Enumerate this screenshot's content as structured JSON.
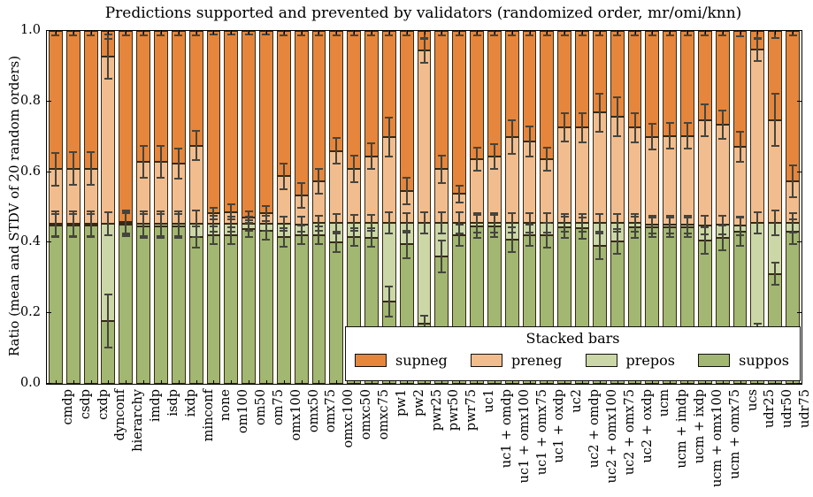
{
  "title": "Predictions supported and prevented by validators (randomized order, mr/omi/knn)",
  "ylabel": "Ratio (mean and STDV of 20 random orders)",
  "yticks": [
    "0.0",
    "0.2",
    "0.4",
    "0.6",
    "0.8",
    "1.0"
  ],
  "colors": {
    "supneg": "#e5863c",
    "preneg": "#f2bd8e",
    "prepos": "#cbd7a7",
    "suppos": "#a2b771",
    "edge": "#362a12",
    "errorbar": "#45453e"
  },
  "legend": {
    "title": "Stacked bars",
    "entries": [
      {
        "label": "supneg",
        "color": "#e5863c"
      },
      {
        "label": "preneg",
        "color": "#f2bd8e"
      },
      {
        "label": "prepos",
        "color": "#cbd7a7"
      },
      {
        "label": "suppos",
        "color": "#a2b771"
      }
    ]
  },
  "chart_data": {
    "type": "bar",
    "stacked": true,
    "ylim": [
      0,
      1
    ],
    "grid": false,
    "legend_position": "lower right inside",
    "series_order_bottom_to_top": [
      "suppos",
      "prepos",
      "preneg",
      "supneg"
    ],
    "note": "Values are cumulative boundaries: suppos_top, prepos_top, preneg_top; supneg fills to 1.0. *_err = STDV error bar half-length at that boundary.",
    "categories": [
      "cmdp",
      "csdp",
      "cxdp",
      "dynconf",
      "hierarchy",
      "imdp",
      "isdp",
      "ixdp",
      "minconf",
      "none",
      "om100",
      "om50",
      "om75",
      "omx100",
      "omx50",
      "omx75",
      "omxc100",
      "omxc50",
      "omxc75",
      "pw1",
      "pw2",
      "pwr25",
      "pwr50",
      "pwr75",
      "uc1",
      "uc1 + omdp",
      "uc1 + omx100",
      "uc1 + omx75",
      "uc1 + oxdp",
      "uc2",
      "uc2 + omdp",
      "uc2 + omx100",
      "uc2 + omx75",
      "uc2 + oxdp",
      "ucm",
      "ucm + imdp",
      "ucm + ixdp",
      "ucm + omx100",
      "ucm + omx75",
      "ucs",
      "udr25",
      "udr50",
      "udr75"
    ],
    "bars": [
      {
        "label": "cmdp",
        "suppos_top": 0.448,
        "suppos_err": 0.033,
        "prepos_top": 0.454,
        "prepos_err": 0.035,
        "preneg_top": 0.608,
        "preneg_err": 0.046,
        "supneg_top": 1.0,
        "supneg_err": 0.012
      },
      {
        "label": "csdp",
        "suppos_top": 0.448,
        "suppos_err": 0.033,
        "prepos_top": 0.454,
        "prepos_err": 0.035,
        "preneg_top": 0.61,
        "preneg_err": 0.047,
        "supneg_top": 1.0,
        "supneg_err": 0.012
      },
      {
        "label": "cxdp",
        "suppos_top": 0.448,
        "suppos_err": 0.033,
        "prepos_top": 0.454,
        "prepos_err": 0.035,
        "preneg_top": 0.61,
        "preneg_err": 0.047,
        "supneg_top": 1.0,
        "supneg_err": 0.012
      },
      {
        "label": "dynconf",
        "suppos_top": 0.178,
        "suppos_err": 0.075,
        "prepos_top": 0.454,
        "prepos_err": 0.032,
        "preneg_top": 0.928,
        "preneg_err": 0.063,
        "supneg_top": 1.0,
        "supneg_err": 0.022
      },
      {
        "label": "hierarchy",
        "suppos_top": 0.451,
        "suppos_err": 0.032,
        "prepos_top": 0.455,
        "prepos_err": 0.032,
        "preneg_top": 0.459,
        "preneg_err": 0.032,
        "supneg_top": 1.0,
        "supneg_err": 0.012
      },
      {
        "label": "imdp",
        "suppos_top": 0.447,
        "suppos_err": 0.034,
        "prepos_top": 0.454,
        "prepos_err": 0.035,
        "preneg_top": 0.628,
        "preneg_err": 0.045,
        "supneg_top": 1.0,
        "supneg_err": 0.012
      },
      {
        "label": "isdp",
        "suppos_top": 0.447,
        "suppos_err": 0.034,
        "prepos_top": 0.454,
        "prepos_err": 0.035,
        "preneg_top": 0.628,
        "preneg_err": 0.045,
        "supneg_top": 1.0,
        "supneg_err": 0.012
      },
      {
        "label": "ixdp",
        "suppos_top": 0.447,
        "suppos_err": 0.034,
        "prepos_top": 0.454,
        "prepos_err": 0.035,
        "preneg_top": 0.624,
        "preneg_err": 0.042,
        "supneg_top": 1.0,
        "supneg_err": 0.012
      },
      {
        "label": "minconf",
        "suppos_top": 0.416,
        "suppos_err": 0.03,
        "prepos_top": 0.453,
        "prepos_err": 0.037,
        "preneg_top": 0.675,
        "preneg_err": 0.042,
        "supneg_top": 1.0,
        "supneg_err": 0.012
      },
      {
        "label": "none",
        "suppos_top": 0.42,
        "suppos_err": 0.025,
        "prepos_top": 0.454,
        "prepos_err": 0.022,
        "preneg_top": 0.483,
        "preneg_err": 0.016,
        "supneg_top": 1.0,
        "supneg_err": 0.01
      },
      {
        "label": "om100",
        "suppos_top": 0.42,
        "suppos_err": 0.023,
        "prepos_top": 0.453,
        "prepos_err": 0.021,
        "preneg_top": 0.487,
        "preneg_err": 0.022,
        "supneg_top": 1.0,
        "supneg_err": 0.01
      },
      {
        "label": "om50",
        "suppos_top": 0.439,
        "suppos_err": 0.024,
        "prepos_top": 0.454,
        "prepos_err": 0.02,
        "preneg_top": 0.472,
        "preneg_err": 0.017,
        "supneg_top": 1.0,
        "supneg_err": 0.01
      },
      {
        "label": "om75",
        "suppos_top": 0.434,
        "suppos_err": 0.026,
        "prepos_top": 0.454,
        "prepos_err": 0.021,
        "preneg_top": 0.483,
        "preneg_err": 0.021,
        "supneg_top": 1.0,
        "supneg_err": 0.01
      },
      {
        "label": "omx100",
        "suppos_top": 0.415,
        "suppos_err": 0.027,
        "prepos_top": 0.454,
        "prepos_err": 0.02,
        "preneg_top": 0.588,
        "preneg_err": 0.037,
        "supneg_top": 1.0,
        "supneg_err": 0.012
      },
      {
        "label": "omx50",
        "suppos_top": 0.422,
        "suppos_err": 0.026,
        "prepos_top": 0.452,
        "prepos_err": 0.022,
        "preneg_top": 0.535,
        "preneg_err": 0.035,
        "supneg_top": 1.0,
        "supneg_err": 0.012
      },
      {
        "label": "omx75",
        "suppos_top": 0.422,
        "suppos_err": 0.025,
        "prepos_top": 0.455,
        "prepos_err": 0.022,
        "preneg_top": 0.574,
        "preneg_err": 0.036,
        "supneg_top": 1.0,
        "supneg_err": 0.012
      },
      {
        "label": "omxc100",
        "suppos_top": 0.4,
        "suppos_err": 0.027,
        "prepos_top": 0.457,
        "prepos_err": 0.025,
        "preneg_top": 0.66,
        "preneg_err": 0.037,
        "supneg_top": 1.0,
        "supneg_err": 0.012
      },
      {
        "label": "omxc50",
        "suppos_top": 0.416,
        "suppos_err": 0.026,
        "prepos_top": 0.456,
        "prepos_err": 0.022,
        "preneg_top": 0.609,
        "preneg_err": 0.037,
        "supneg_top": 1.0,
        "supneg_err": 0.012
      },
      {
        "label": "omxc75",
        "suppos_top": 0.414,
        "suppos_err": 0.026,
        "prepos_top": 0.456,
        "prepos_err": 0.022,
        "preneg_top": 0.645,
        "preneg_err": 0.036,
        "supneg_top": 1.0,
        "supneg_err": 0.012
      },
      {
        "label": "pw1",
        "suppos_top": 0.233,
        "suppos_err": 0.043,
        "prepos_top": 0.456,
        "prepos_err": 0.03,
        "preneg_top": 0.7,
        "preneg_err": 0.055,
        "supneg_top": 1.0,
        "supneg_err": 0.012
      },
      {
        "label": "pw2",
        "suppos_top": 0.395,
        "suppos_err": 0.038,
        "prepos_top": 0.456,
        "prepos_err": 0.027,
        "preneg_top": 0.546,
        "preneg_err": 0.038,
        "supneg_top": 1.0,
        "supneg_err": 0.012
      },
      {
        "label": "pwr25",
        "suppos_top": 0.17,
        "suppos_err": 0.022,
        "prepos_top": 0.456,
        "prepos_err": 0.03,
        "preneg_top": 0.945,
        "preneg_err": 0.034,
        "supneg_top": 1.0,
        "supneg_err": 0.022
      },
      {
        "label": "pwr50",
        "suppos_top": 0.36,
        "suppos_err": 0.045,
        "prepos_top": 0.456,
        "prepos_err": 0.031,
        "preneg_top": 0.608,
        "preneg_err": 0.039,
        "supneg_top": 1.0,
        "supneg_err": 0.012
      },
      {
        "label": "pwr75",
        "suppos_top": 0.42,
        "suppos_err": 0.03,
        "prepos_top": 0.456,
        "prepos_err": 0.029,
        "preneg_top": 0.538,
        "preneg_err": 0.023,
        "supneg_top": 1.0,
        "supneg_err": 0.012
      },
      {
        "label": "uc1",
        "suppos_top": 0.446,
        "suppos_err": 0.032,
        "prepos_top": 0.456,
        "prepos_err": 0.028,
        "preneg_top": 0.637,
        "preneg_err": 0.033,
        "supneg_top": 1.0,
        "supneg_err": 0.012
      },
      {
        "label": "uc1 + omdp",
        "suppos_top": 0.447,
        "suppos_err": 0.032,
        "prepos_top": 0.456,
        "prepos_err": 0.028,
        "preneg_top": 0.643,
        "preneg_err": 0.035,
        "supneg_top": 1.0,
        "supneg_err": 0.012
      },
      {
        "label": "uc1 + omx100",
        "suppos_top": 0.408,
        "suppos_err": 0.035,
        "prepos_top": 0.456,
        "prepos_err": 0.028,
        "preneg_top": 0.699,
        "preneg_err": 0.047,
        "supneg_top": 1.0,
        "supneg_err": 0.012
      },
      {
        "label": "uc1 + omx75",
        "suppos_top": 0.42,
        "suppos_err": 0.03,
        "prepos_top": 0.456,
        "prepos_err": 0.028,
        "preneg_top": 0.687,
        "preneg_err": 0.043,
        "supneg_top": 1.0,
        "supneg_err": 0.012
      },
      {
        "label": "uc1 + oxdp",
        "suppos_top": 0.42,
        "suppos_err": 0.035,
        "prepos_top": 0.456,
        "prepos_err": 0.028,
        "preneg_top": 0.637,
        "preneg_err": 0.033,
        "supneg_top": 1.0,
        "supneg_err": 0.012
      },
      {
        "label": "uc2",
        "suppos_top": 0.443,
        "suppos_err": 0.03,
        "prepos_top": 0.456,
        "prepos_err": 0.026,
        "preneg_top": 0.727,
        "preneg_err": 0.04,
        "supneg_top": 1.0,
        "supneg_err": 0.012
      },
      {
        "label": "uc2 + omdp",
        "suppos_top": 0.44,
        "suppos_err": 0.03,
        "prepos_top": 0.456,
        "prepos_err": 0.026,
        "preneg_top": 0.726,
        "preneg_err": 0.042,
        "supneg_top": 1.0,
        "supneg_err": 0.012
      },
      {
        "label": "uc2 + omx100",
        "suppos_top": 0.39,
        "suppos_err": 0.037,
        "prepos_top": 0.456,
        "prepos_err": 0.026,
        "preneg_top": 0.769,
        "preneg_err": 0.054,
        "supneg_top": 1.0,
        "supneg_err": 0.012
      },
      {
        "label": "uc2 + omx75",
        "suppos_top": 0.403,
        "suppos_err": 0.035,
        "prepos_top": 0.456,
        "prepos_err": 0.026,
        "preneg_top": 0.758,
        "preneg_err": 0.055,
        "supneg_top": 1.0,
        "supneg_err": 0.012
      },
      {
        "label": "uc2 + oxdp",
        "suppos_top": 0.444,
        "suppos_err": 0.03,
        "prepos_top": 0.456,
        "prepos_err": 0.026,
        "preneg_top": 0.726,
        "preneg_err": 0.042,
        "supneg_top": 1.0,
        "supneg_err": 0.012
      },
      {
        "label": "ucm",
        "suppos_top": 0.443,
        "suppos_err": 0.028,
        "prepos_top": 0.451,
        "prepos_err": 0.026,
        "preneg_top": 0.7,
        "preneg_err": 0.037,
        "supneg_top": 1.0,
        "supneg_err": 0.012
      },
      {
        "label": "ucm + imdp",
        "suppos_top": 0.443,
        "suppos_err": 0.028,
        "prepos_top": 0.451,
        "prepos_err": 0.026,
        "preneg_top": 0.703,
        "preneg_err": 0.037,
        "supneg_top": 1.0,
        "supneg_err": 0.012
      },
      {
        "label": "ucm + ixdp",
        "suppos_top": 0.443,
        "suppos_err": 0.028,
        "prepos_top": 0.451,
        "prepos_err": 0.026,
        "preneg_top": 0.703,
        "preneg_err": 0.037,
        "supneg_top": 1.0,
        "supneg_err": 0.012
      },
      {
        "label": "ucm + omx100",
        "suppos_top": 0.406,
        "suppos_err": 0.037,
        "prepos_top": 0.449,
        "prepos_err": 0.026,
        "preneg_top": 0.746,
        "preneg_err": 0.045,
        "supneg_top": 1.0,
        "supneg_err": 0.012
      },
      {
        "label": "ucm + omx75",
        "suppos_top": 0.414,
        "suppos_err": 0.035,
        "prepos_top": 0.45,
        "prepos_err": 0.026,
        "preneg_top": 0.734,
        "preneg_err": 0.04,
        "supneg_top": 1.0,
        "supneg_err": 0.012
      },
      {
        "label": "ucs",
        "suppos_top": 0.43,
        "suppos_err": 0.04,
        "prepos_top": 0.448,
        "prepos_err": 0.026,
        "preneg_top": 0.672,
        "preneg_err": 0.042,
        "supneg_top": 1.0,
        "supneg_err": 0.015
      },
      {
        "label": "udr25",
        "suppos_top": 0.14,
        "suppos_err": 0.03,
        "prepos_top": 0.456,
        "prepos_err": 0.03,
        "preneg_top": 0.948,
        "preneg_err": 0.032,
        "supneg_top": 1.0,
        "supneg_err": 0.022
      },
      {
        "label": "udr50",
        "suppos_top": 0.312,
        "suppos_err": 0.032,
        "prepos_top": 0.456,
        "prepos_err": 0.035,
        "preneg_top": 0.748,
        "preneg_err": 0.075,
        "supneg_top": 1.0,
        "supneg_err": 0.02
      },
      {
        "label": "udr75",
        "suppos_top": 0.432,
        "suppos_err": 0.035,
        "prepos_top": 0.456,
        "prepos_err": 0.028,
        "preneg_top": 0.575,
        "preneg_err": 0.045,
        "supneg_top": 1.0,
        "supneg_err": 0.012
      }
    ]
  }
}
